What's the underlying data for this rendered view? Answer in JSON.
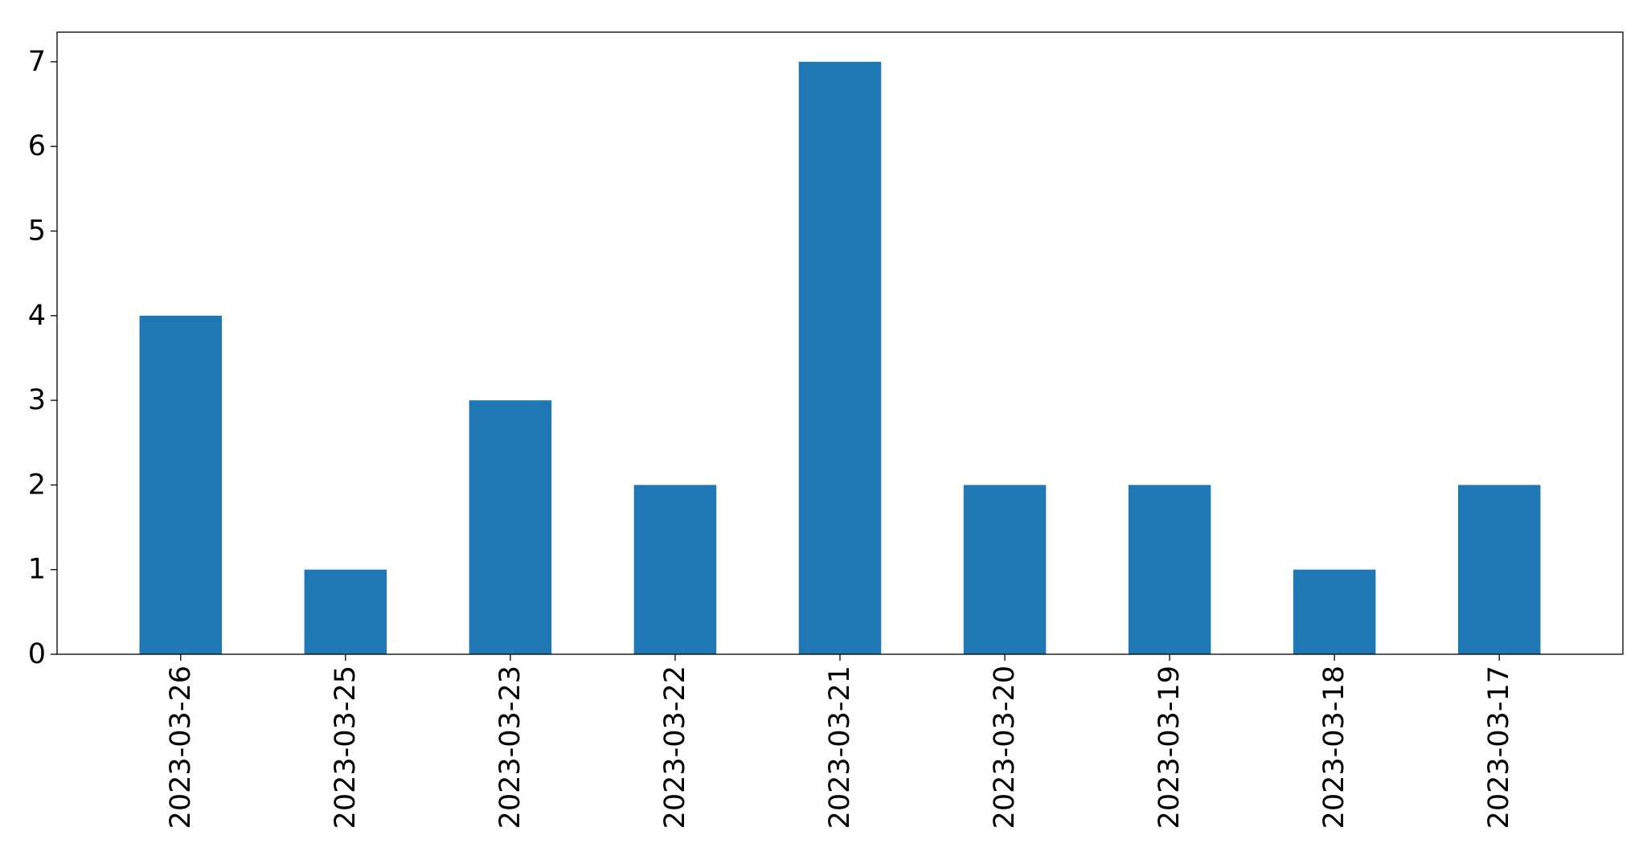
{
  "chart_data": {
    "type": "bar",
    "title": "",
    "xlabel": "",
    "ylabel": "",
    "categories": [
      "2023-03-26",
      "2023-03-25",
      "2023-03-23",
      "2023-03-22",
      "2023-03-21",
      "2023-03-20",
      "2023-03-19",
      "2023-03-18",
      "2023-03-17"
    ],
    "values": [
      4,
      1,
      3,
      2,
      7,
      2,
      2,
      1,
      2
    ],
    "ylim": [
      0,
      7.35
    ],
    "yticks": [
      0,
      1,
      2,
      3,
      4,
      5,
      6,
      7
    ],
    "x_tick_rotation": "vertical",
    "grid": false,
    "legend": "none",
    "bar_color": "#1f77b4"
  }
}
